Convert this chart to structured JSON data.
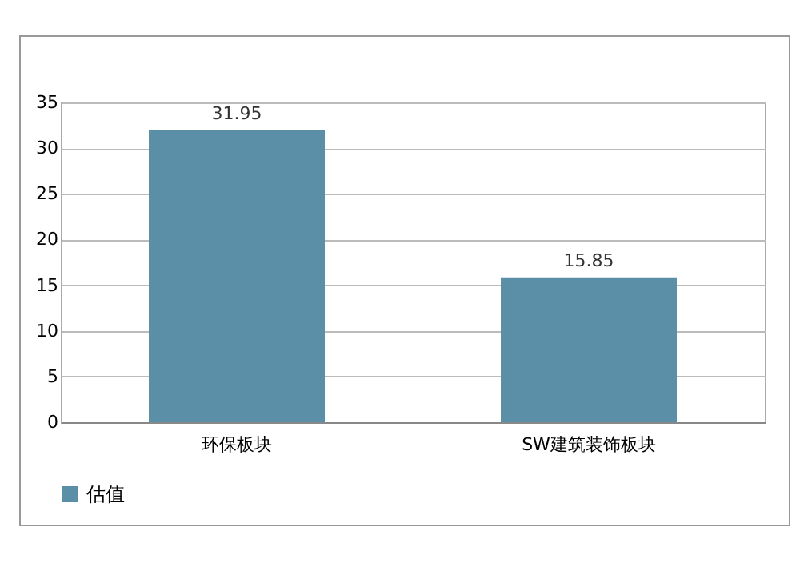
{
  "chart_data": {
    "type": "bar",
    "categories": [
      "环保板块",
      "SW建筑装饰板块"
    ],
    "series": [
      {
        "name": "估值",
        "color": "#5b8fa8",
        "values": [
          31.95,
          15.85
        ]
      }
    ],
    "ylim": [
      0,
      35
    ],
    "yticks": [
      0,
      5,
      10,
      15,
      20,
      25,
      30,
      35
    ],
    "grid": "y",
    "legend": "bottom",
    "data_labels": true
  }
}
